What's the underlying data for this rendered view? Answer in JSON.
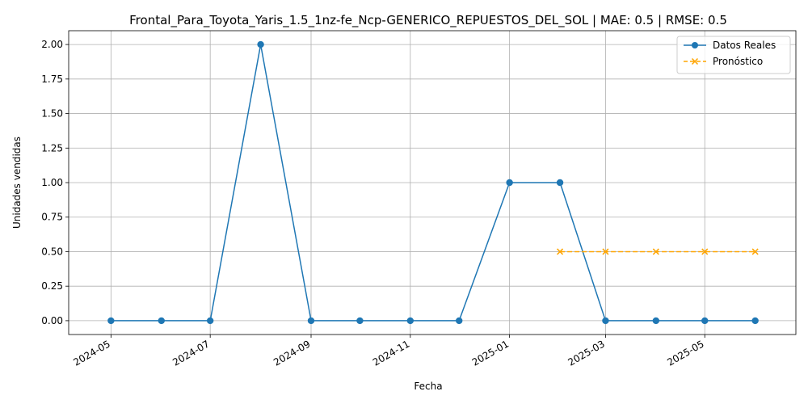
{
  "chart_data": {
    "type": "line",
    "title": "Frontal_Para_Toyota_Yaris_1.5_1nz-fe_Ncp-GENERICO_REPUESTOS_DEL_SOL | MAE: 0.5 | RMSE: 0.5",
    "xlabel": "Fecha",
    "ylabel": "Unidades vendidas",
    "ylim": [
      -0.1,
      2.1
    ],
    "xlim": [
      "2024-04-05",
      "2025-06-26"
    ],
    "x_ticks": [
      "2024-05",
      "2024-07",
      "2024-09",
      "2024-11",
      "2025-01",
      "2025-03",
      "2025-05"
    ],
    "y_ticks": [
      "0.00",
      "0.25",
      "0.50",
      "0.75",
      "1.00",
      "1.25",
      "1.50",
      "1.75",
      "2.00"
    ],
    "grid": true,
    "legend_position": "top-right",
    "series": [
      {
        "name": "Datos Reales",
        "color": "#1f77b4",
        "style": "solid",
        "marker": "circle",
        "x": [
          "2024-05-01",
          "2024-06-01",
          "2024-07-01",
          "2024-08-01",
          "2024-09-01",
          "2024-10-01",
          "2024-11-01",
          "2024-12-01",
          "2025-01-01",
          "2025-02-01",
          "2025-03-01",
          "2025-04-01",
          "2025-05-01",
          "2025-06-01"
        ],
        "y": [
          0,
          0,
          0,
          2,
          0,
          0,
          0,
          0,
          1,
          1,
          0,
          0,
          0,
          0
        ]
      },
      {
        "name": "Pronóstico",
        "color": "#ffa500",
        "style": "dashed",
        "marker": "x",
        "x": [
          "2025-02-01",
          "2025-03-01",
          "2025-04-01",
          "2025-05-01",
          "2025-06-01"
        ],
        "y": [
          0.5,
          0.5,
          0.5,
          0.5,
          0.5
        ]
      }
    ]
  }
}
